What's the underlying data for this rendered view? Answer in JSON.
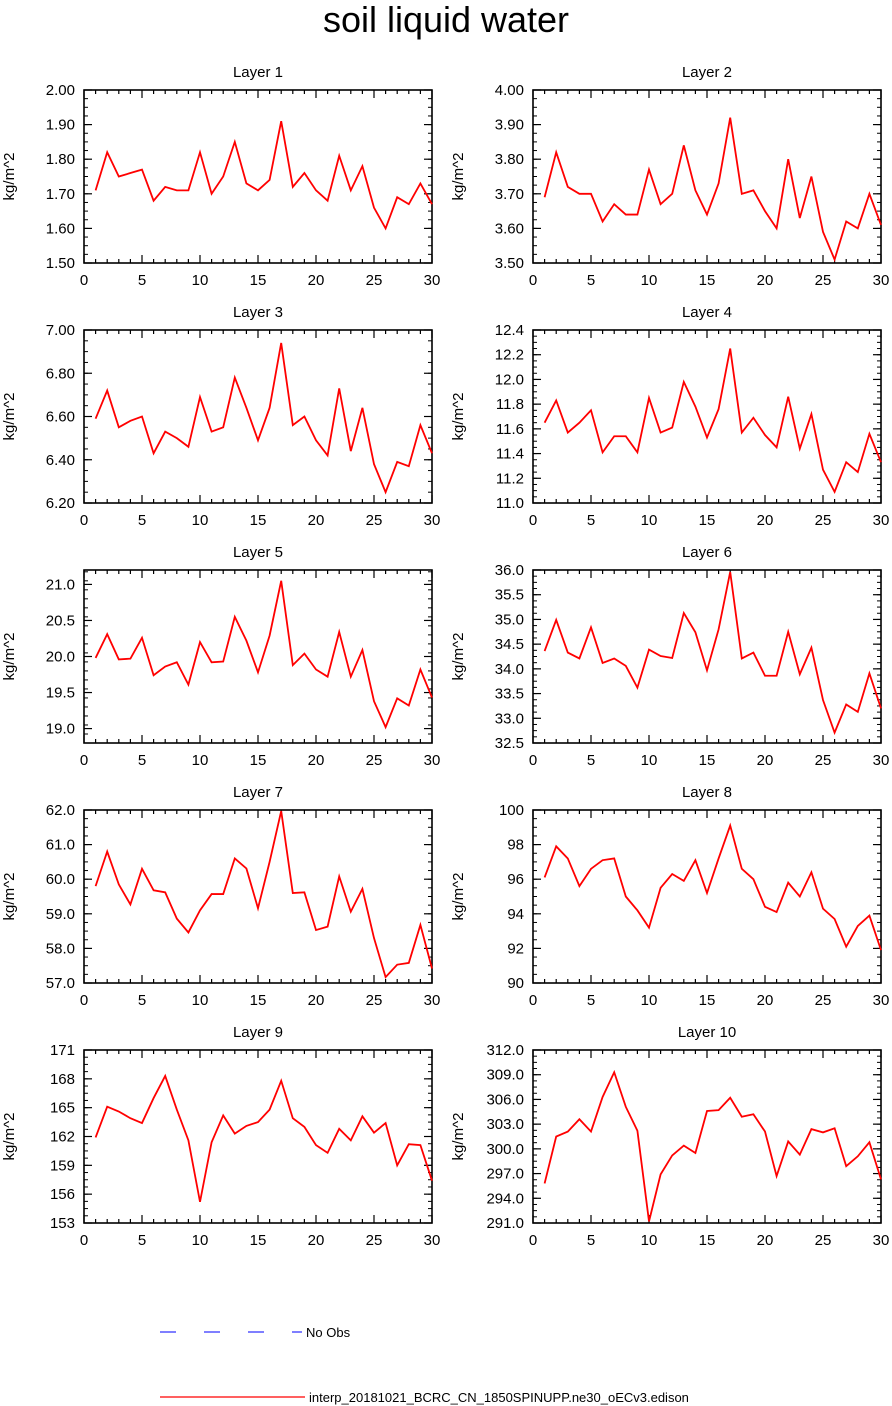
{
  "title": "soil liquid water",
  "colors": {
    "model_line": "#ff0000",
    "obs_line": "#3333ff",
    "axis": "#000000"
  },
  "legend": {
    "obs_label": "No Obs",
    "model_label": "interp_20181021_BCRC_CN_1850SPINUPP.ne30_oECv3.edison"
  },
  "chart_data": [
    {
      "type": "line",
      "title": "Layer 1",
      "ylabel": "kg/m^2",
      "xlabel": "",
      "xlim": [
        0,
        30
      ],
      "ylim": [
        1.5,
        2.0
      ],
      "xticks": [
        "0",
        "5",
        "10",
        "15",
        "20",
        "25",
        "30"
      ],
      "yticks": [
        "1.50",
        "1.60",
        "1.70",
        "1.80",
        "1.90",
        "2.00"
      ],
      "x": [
        1,
        2,
        3,
        4,
        5,
        6,
        7,
        8,
        9,
        10,
        11,
        12,
        13,
        14,
        15,
        16,
        17,
        18,
        19,
        20,
        21,
        22,
        23,
        24,
        25,
        26,
        27,
        28,
        29,
        30
      ],
      "values": [
        1.71,
        1.82,
        1.75,
        1.76,
        1.77,
        1.68,
        1.72,
        1.71,
        1.71,
        1.82,
        1.7,
        1.75,
        1.85,
        1.73,
        1.71,
        1.74,
        1.91,
        1.72,
        1.76,
        1.71,
        1.68,
        1.81,
        1.71,
        1.78,
        1.66,
        1.6,
        1.69,
        1.67,
        1.73,
        1.67
      ]
    },
    {
      "type": "line",
      "title": "Layer 2",
      "ylabel": "kg/m^2",
      "xlabel": "",
      "xlim": [
        0,
        30
      ],
      "ylim": [
        3.5,
        4.0
      ],
      "xticks": [
        "0",
        "5",
        "10",
        "15",
        "20",
        "25",
        "30"
      ],
      "yticks": [
        "3.50",
        "3.60",
        "3.70",
        "3.80",
        "3.90",
        "4.00"
      ],
      "x": [
        1,
        2,
        3,
        4,
        5,
        6,
        7,
        8,
        9,
        10,
        11,
        12,
        13,
        14,
        15,
        16,
        17,
        18,
        19,
        20,
        21,
        22,
        23,
        24,
        25,
        26,
        27,
        28,
        29,
        30
      ],
      "values": [
        3.69,
        3.82,
        3.72,
        3.7,
        3.7,
        3.62,
        3.67,
        3.64,
        3.64,
        3.77,
        3.67,
        3.7,
        3.84,
        3.71,
        3.64,
        3.73,
        3.92,
        3.7,
        3.71,
        3.65,
        3.6,
        3.8,
        3.63,
        3.75,
        3.59,
        3.51,
        3.62,
        3.6,
        3.7,
        3.61
      ]
    },
    {
      "type": "line",
      "title": "Layer 3",
      "ylabel": "kg/m^2",
      "xlabel": "",
      "xlim": [
        0,
        30
      ],
      "ylim": [
        6.2,
        7.0
      ],
      "xticks": [
        "0",
        "5",
        "10",
        "15",
        "20",
        "25",
        "30"
      ],
      "yticks": [
        "6.20",
        "6.40",
        "6.60",
        "6.80",
        "7.00"
      ],
      "x": [
        1,
        2,
        3,
        4,
        5,
        6,
        7,
        8,
        9,
        10,
        11,
        12,
        13,
        14,
        15,
        16,
        17,
        18,
        19,
        20,
        21,
        22,
        23,
        24,
        25,
        26,
        27,
        28,
        29,
        30
      ],
      "values": [
        6.59,
        6.72,
        6.55,
        6.58,
        6.6,
        6.43,
        6.53,
        6.5,
        6.46,
        6.69,
        6.53,
        6.55,
        6.78,
        6.64,
        6.49,
        6.64,
        6.94,
        6.56,
        6.6,
        6.49,
        6.42,
        6.73,
        6.44,
        6.64,
        6.38,
        6.25,
        6.39,
        6.37,
        6.56,
        6.43
      ]
    },
    {
      "type": "line",
      "title": "Layer 4",
      "ylabel": "kg/m^2",
      "xlabel": "",
      "xlim": [
        0,
        30
      ],
      "ylim": [
        11.0,
        12.4
      ],
      "xticks": [
        "0",
        "5",
        "10",
        "15",
        "20",
        "25",
        "30"
      ],
      "yticks": [
        "11.0",
        "11.2",
        "11.4",
        "11.6",
        "11.8",
        "12.0",
        "12.2",
        "12.4"
      ],
      "x": [
        1,
        2,
        3,
        4,
        5,
        6,
        7,
        8,
        9,
        10,
        11,
        12,
        13,
        14,
        15,
        16,
        17,
        18,
        19,
        20,
        21,
        22,
        23,
        24,
        25,
        26,
        27,
        28,
        29,
        30
      ],
      "values": [
        11.65,
        11.83,
        11.57,
        11.65,
        11.75,
        11.41,
        11.54,
        11.54,
        11.41,
        11.85,
        11.57,
        11.61,
        11.98,
        11.78,
        11.53,
        11.76,
        12.25,
        11.57,
        11.69,
        11.55,
        11.45,
        11.86,
        11.44,
        11.72,
        11.27,
        11.09,
        11.33,
        11.25,
        11.56,
        11.33
      ]
    },
    {
      "type": "line",
      "title": "Layer 5",
      "ylabel": "kg/m^2",
      "xlabel": "",
      "xlim": [
        0,
        30
      ],
      "ylim": [
        18.8,
        21.2
      ],
      "xticks": [
        "0",
        "5",
        "10",
        "15",
        "20",
        "25",
        "30"
      ],
      "yticks": [
        "19.0",
        "19.5",
        "20.0",
        "20.5",
        "21.0"
      ],
      "x": [
        1,
        2,
        3,
        4,
        5,
        6,
        7,
        8,
        9,
        10,
        11,
        12,
        13,
        14,
        15,
        16,
        17,
        18,
        19,
        20,
        21,
        22,
        23,
        24,
        25,
        26,
        27,
        28,
        29,
        30
      ],
      "values": [
        19.98,
        20.31,
        19.96,
        19.97,
        20.26,
        19.74,
        19.86,
        19.92,
        19.61,
        20.2,
        19.92,
        19.93,
        20.55,
        20.22,
        19.78,
        20.29,
        21.05,
        19.88,
        20.04,
        19.82,
        19.72,
        20.34,
        19.72,
        20.09,
        19.38,
        19.02,
        19.42,
        19.32,
        19.82,
        19.43
      ]
    },
    {
      "type": "line",
      "title": "Layer 6",
      "ylabel": "kg/m^2",
      "xlabel": "",
      "xlim": [
        0,
        30
      ],
      "ylim": [
        32.5,
        36.0
      ],
      "xticks": [
        "0",
        "5",
        "10",
        "15",
        "20",
        "25",
        "30"
      ],
      "yticks": [
        "32.5",
        "33.0",
        "33.5",
        "34.0",
        "34.5",
        "35.0",
        "35.5",
        "36.0"
      ],
      "x": [
        1,
        2,
        3,
        4,
        5,
        6,
        7,
        8,
        9,
        10,
        11,
        12,
        13,
        14,
        15,
        16,
        17,
        18,
        19,
        20,
        21,
        22,
        23,
        24,
        25,
        26,
        27,
        28,
        29,
        30
      ],
      "values": [
        34.36,
        34.99,
        34.33,
        34.21,
        34.84,
        34.12,
        34.21,
        34.06,
        33.62,
        34.39,
        34.26,
        34.22,
        35.13,
        34.74,
        33.97,
        34.8,
        35.96,
        34.21,
        34.33,
        33.86,
        33.86,
        34.75,
        33.89,
        34.43,
        33.37,
        32.71,
        33.28,
        33.13,
        33.91,
        33.2
      ]
    },
    {
      "type": "line",
      "title": "Layer 7",
      "ylabel": "kg/m^2",
      "xlabel": "",
      "xlim": [
        0,
        30
      ],
      "ylim": [
        57.0,
        62.0
      ],
      "xticks": [
        "0",
        "5",
        "10",
        "15",
        "20",
        "25",
        "30"
      ],
      "yticks": [
        "57.0",
        "58.0",
        "59.0",
        "60.0",
        "61.0",
        "62.0"
      ],
      "x": [
        1,
        2,
        3,
        4,
        5,
        6,
        7,
        8,
        9,
        10,
        11,
        12,
        13,
        14,
        15,
        16,
        17,
        18,
        19,
        20,
        21,
        22,
        23,
        24,
        25,
        26,
        27,
        28,
        29,
        30
      ],
      "values": [
        59.8,
        60.8,
        59.85,
        59.27,
        60.3,
        59.68,
        59.62,
        58.86,
        58.46,
        59.1,
        59.57,
        59.57,
        60.6,
        60.31,
        59.16,
        60.5,
        61.97,
        59.6,
        59.62,
        58.53,
        58.63,
        60.08,
        59.06,
        59.72,
        58.3,
        57.17,
        57.53,
        57.58,
        58.68,
        57.42
      ]
    },
    {
      "type": "line",
      "title": "Layer 8",
      "ylabel": "kg/m^2",
      "xlabel": "",
      "xlim": [
        0,
        30
      ],
      "ylim": [
        90,
        100
      ],
      "xticks": [
        "0",
        "5",
        "10",
        "15",
        "20",
        "25",
        "30"
      ],
      "yticks": [
        "90",
        "92",
        "94",
        "96",
        "98",
        "100"
      ],
      "x": [
        1,
        2,
        3,
        4,
        5,
        6,
        7,
        8,
        9,
        10,
        11,
        12,
        13,
        14,
        15,
        16,
        17,
        18,
        19,
        20,
        21,
        22,
        23,
        24,
        25,
        26,
        27,
        28,
        29,
        30
      ],
      "values": [
        96.1,
        97.9,
        97.2,
        95.6,
        96.6,
        97.1,
        97.2,
        95.0,
        94.2,
        93.2,
        95.5,
        96.3,
        95.9,
        97.1,
        95.2,
        97.2,
        99.1,
        96.6,
        96.0,
        94.4,
        94.1,
        95.8,
        95.0,
        96.4,
        94.3,
        93.7,
        92.1,
        93.3,
        93.9,
        91.9
      ]
    },
    {
      "type": "line",
      "title": "Layer 9",
      "ylabel": "kg/m^2",
      "xlabel": "",
      "xlim": [
        0,
        30
      ],
      "ylim": [
        153,
        171
      ],
      "xticks": [
        "0",
        "5",
        "10",
        "15",
        "20",
        "25",
        "30"
      ],
      "yticks": [
        "153",
        "156",
        "159",
        "162",
        "165",
        "168",
        "171"
      ],
      "x": [
        1,
        2,
        3,
        4,
        5,
        6,
        7,
        8,
        9,
        10,
        11,
        12,
        13,
        14,
        15,
        16,
        17,
        18,
        19,
        20,
        21,
        22,
        23,
        24,
        25,
        26,
        27,
        28,
        29,
        30
      ],
      "values": [
        161.9,
        165.1,
        164.6,
        163.9,
        163.4,
        166.0,
        168.3,
        164.8,
        161.6,
        155.2,
        161.4,
        164.2,
        162.3,
        163.1,
        163.5,
        164.8,
        167.8,
        163.9,
        163.0,
        161.1,
        160.3,
        162.8,
        161.6,
        164.1,
        162.4,
        163.4,
        159.0,
        161.2,
        161.1,
        157.4
      ]
    },
    {
      "type": "line",
      "title": "Layer 10",
      "ylabel": "kg/m^2",
      "xlabel": "",
      "xlim": [
        0,
        30
      ],
      "ylim": [
        291.0,
        312.0
      ],
      "xticks": [
        "0",
        "5",
        "10",
        "15",
        "20",
        "25",
        "30"
      ],
      "yticks": [
        "291.0",
        "294.0",
        "297.0",
        "300.0",
        "303.0",
        "306.0",
        "309.0",
        "312.0"
      ],
      "x": [
        1,
        2,
        3,
        4,
        5,
        6,
        7,
        8,
        9,
        10,
        11,
        12,
        13,
        14,
        15,
        16,
        17,
        18,
        19,
        20,
        21,
        22,
        23,
        24,
        25,
        26,
        27,
        28,
        29,
        30
      ],
      "values": [
        295.8,
        301.5,
        302.1,
        303.6,
        302.1,
        306.3,
        309.3,
        305.1,
        302.2,
        291.2,
        296.9,
        299.2,
        300.4,
        299.5,
        304.6,
        304.7,
        306.2,
        303.9,
        304.2,
        302.1,
        296.7,
        300.9,
        299.3,
        302.4,
        302.0,
        302.5,
        297.9,
        299.1,
        300.8,
        296.3
      ]
    }
  ]
}
